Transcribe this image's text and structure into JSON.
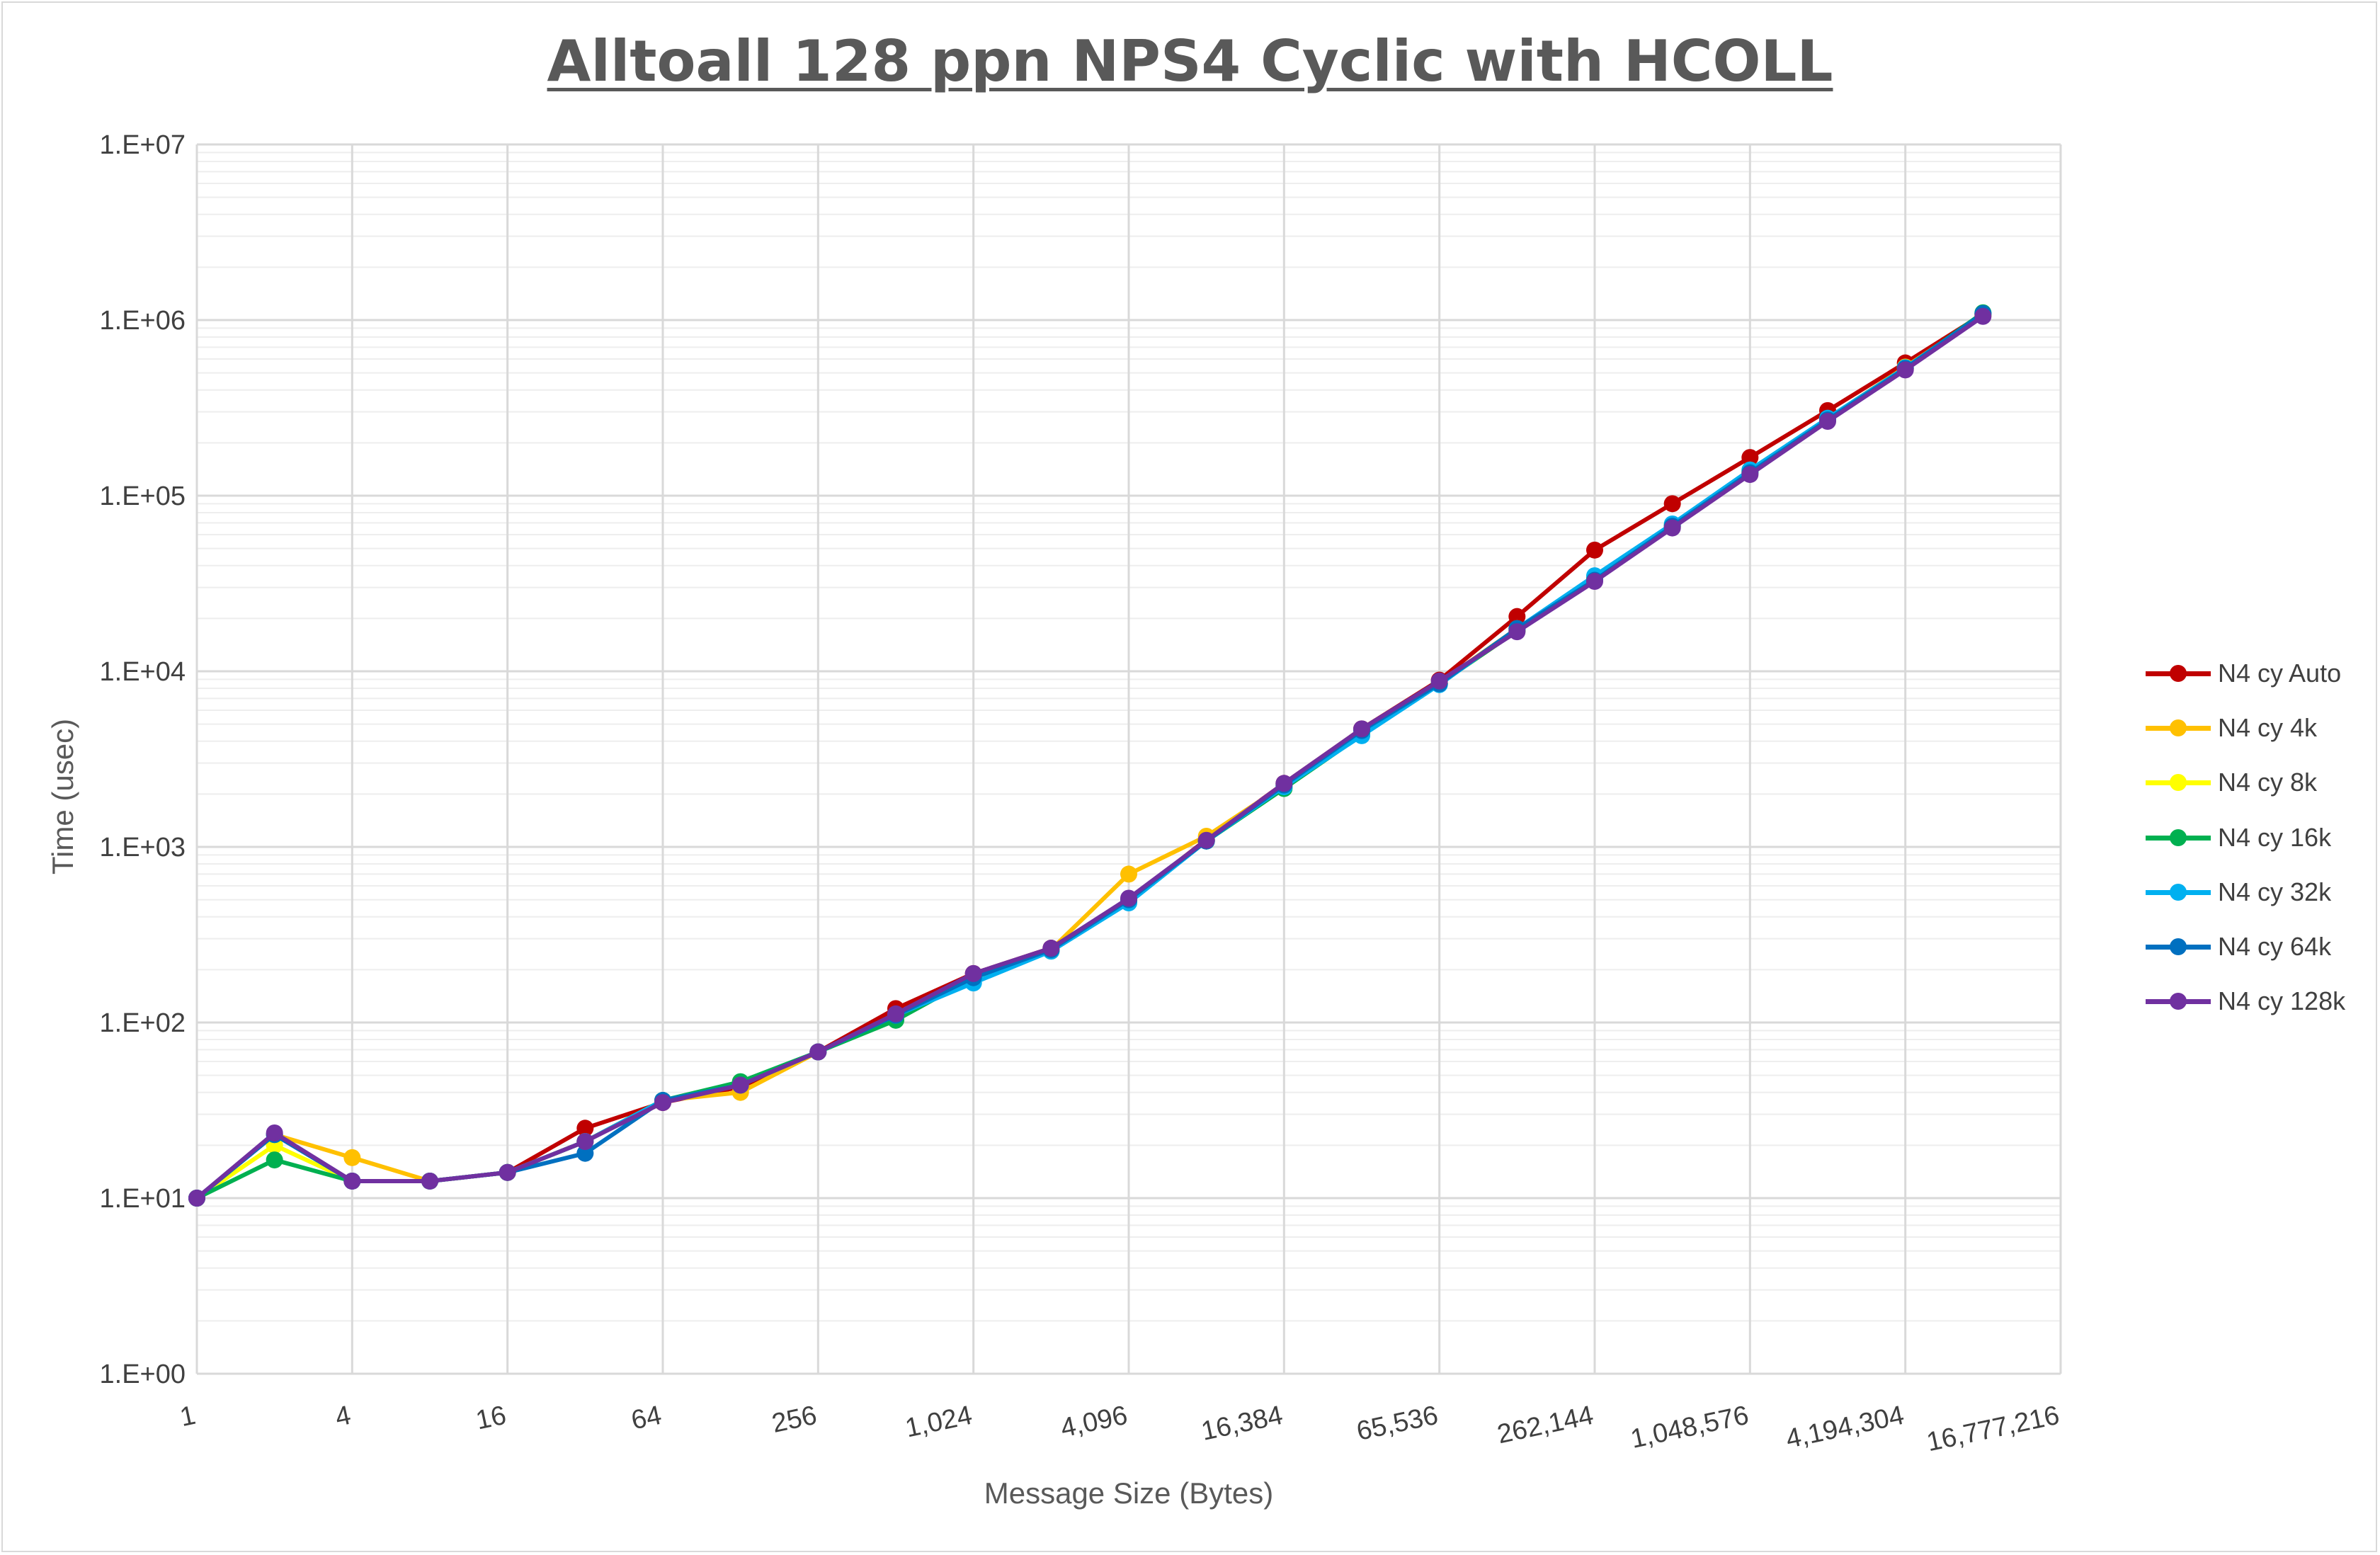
{
  "chart_data": {
    "type": "line",
    "title": "Alltoall 128 ppn NPS4 Cyclic with HCOLL",
    "xlabel": "Message Size (Bytes)",
    "ylabel": "Time (usec)",
    "x_scale": "log2",
    "y_scale": "log10",
    "ylim": [
      1,
      10000000
    ],
    "grid": true,
    "legend_position": "right",
    "x_tick_labels": [
      "1",
      "4",
      "16",
      "64",
      "256",
      "1,024",
      "4,096",
      "16,384",
      "65,536",
      "262,144",
      "1,048,576",
      "4,194,304",
      "16,777,216"
    ],
    "x_tick_values": [
      1,
      4,
      16,
      64,
      256,
      1024,
      4096,
      16384,
      65536,
      262144,
      1048576,
      4194304,
      16777216
    ],
    "y_tick_labels": [
      "1.E+00",
      "1.E+01",
      "1.E+02",
      "1.E+03",
      "1.E+04",
      "1.E+05",
      "1.E+06",
      "1.E+07"
    ],
    "y_tick_values": [
      1,
      10,
      100,
      1000,
      10000,
      100000,
      1000000,
      10000000
    ],
    "x": [
      1,
      2,
      4,
      8,
      16,
      32,
      64,
      128,
      256,
      512,
      1024,
      2048,
      4096,
      8192,
      16384,
      32768,
      65536,
      131072,
      262144,
      524288,
      1048576,
      2097152,
      4194304,
      8388608
    ],
    "series": [
      {
        "name": "N4 cy Auto",
        "color": "#c00000",
        "values": [
          10,
          23,
          12.5,
          12.5,
          14,
          25,
          35,
          43,
          68,
          120,
          190,
          265,
          500,
          1100,
          2300,
          4700,
          8900,
          20500,
          49000,
          90000,
          165000,
          305000,
          570000,
          1080000
        ]
      },
      {
        "name": "N4 cy 4k",
        "color": "#ffc000",
        "values": [
          10,
          23,
          17,
          12.5,
          14,
          21,
          36,
          40,
          68,
          105,
          180,
          260,
          700,
          1150,
          2250,
          4400,
          8600,
          17500,
          34000,
          68000,
          140000,
          275000,
          540000,
          1070000
        ]
      },
      {
        "name": "N4 cy 8k",
        "color": "#ffff00",
        "values": [
          10,
          20,
          12.5,
          12.5,
          14,
          21,
          36,
          44,
          68,
          105,
          180,
          260,
          490,
          1080,
          2200,
          4400,
          8500,
          17000,
          33000,
          66000,
          135000,
          270000,
          525000,
          1060000
        ]
      },
      {
        "name": "N4 cy 16k",
        "color": "#00b050",
        "values": [
          10,
          16.5,
          12.5,
          12.5,
          14,
          21,
          36,
          46,
          68,
          103,
          180,
          255,
          490,
          1080,
          2150,
          4350,
          8500,
          17000,
          33500,
          67000,
          137000,
          272000,
          530000,
          1100000
        ]
      },
      {
        "name": "N4 cy 32k",
        "color": "#00b0f0",
        "values": [
          10,
          23,
          12.5,
          12.5,
          14,
          21,
          36,
          44,
          68,
          110,
          168,
          255,
          480,
          1080,
          2200,
          4300,
          8400,
          17500,
          35000,
          69000,
          140000,
          276000,
          535000,
          1080000
        ]
      },
      {
        "name": "N4 cy 64k",
        "color": "#0070c0",
        "values": [
          10,
          23,
          12.5,
          12.5,
          14,
          18,
          36,
          44,
          68,
          110,
          180,
          260,
          500,
          1080,
          2250,
          4600,
          8500,
          17500,
          33000,
          67000,
          135000,
          270000,
          530000,
          1090000
        ]
      },
      {
        "name": "N4 cy 128k",
        "color": "#7030a0",
        "values": [
          10,
          23.5,
          12.5,
          12.5,
          14,
          21,
          35,
          44,
          68,
          112,
          190,
          265,
          510,
          1090,
          2300,
          4700,
          8800,
          16800,
          32500,
          65500,
          132000,
          265000,
          520000,
          1050000
        ]
      }
    ]
  }
}
